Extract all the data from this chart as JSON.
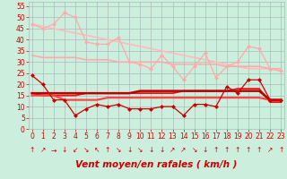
{
  "bg_color": "#cceedd",
  "grid_color": "#aabbbb",
  "xlabel": "Vent moyen/en rafales ( km/h )",
  "xlabel_color": "#cc0000",
  "yticks": [
    0,
    5,
    10,
    15,
    20,
    25,
    30,
    35,
    40,
    45,
    50,
    55
  ],
  "xticks": [
    0,
    1,
    2,
    3,
    4,
    5,
    6,
    7,
    8,
    9,
    10,
    11,
    12,
    13,
    14,
    15,
    16,
    17,
    18,
    19,
    20,
    21,
    22,
    23
  ],
  "xlim": [
    -0.3,
    23.3
  ],
  "ylim": [
    0,
    57
  ],
  "series": [
    {
      "x": [
        0,
        1,
        2,
        3,
        4,
        5,
        6,
        7,
        8,
        9,
        10,
        11,
        12,
        13,
        14,
        15,
        16,
        17,
        18,
        19,
        20,
        21,
        22,
        23
      ],
      "y": [
        47,
        45,
        47,
        52,
        50,
        39,
        38,
        38,
        41,
        30,
        29,
        27,
        33,
        28,
        22,
        28,
        34,
        23,
        28,
        30,
        37,
        36,
        27,
        26
      ],
      "color": "#ffaaaa",
      "lw": 0.9,
      "marker": "D",
      "ms": 2.0,
      "zorder": 4
    },
    {
      "x": [
        0,
        1,
        2,
        3,
        4,
        5,
        6,
        7,
        8,
        9,
        10,
        11,
        12,
        13,
        14,
        15,
        16,
        17,
        18,
        19,
        20,
        21,
        22,
        23
      ],
      "y": [
        47,
        46,
        45,
        44,
        43,
        42,
        41,
        40,
        39,
        38,
        37,
        36,
        35,
        34,
        33,
        32,
        31,
        30,
        29,
        28,
        27,
        27,
        27,
        26
      ],
      "color": "#ffbbbb",
      "lw": 1.2,
      "marker": null,
      "ms": 0,
      "zorder": 2
    },
    {
      "x": [
        0,
        1,
        2,
        3,
        4,
        5,
        6,
        7,
        8,
        9,
        10,
        11,
        12,
        13,
        14,
        15,
        16,
        17,
        18,
        19,
        20,
        21,
        22,
        23
      ],
      "y": [
        33,
        32,
        32,
        32,
        32,
        31,
        31,
        31,
        30,
        30,
        30,
        30,
        30,
        29,
        29,
        29,
        29,
        29,
        28,
        28,
        28,
        28,
        27,
        27
      ],
      "color": "#ffaaaa",
      "lw": 1.2,
      "marker": null,
      "ms": 0,
      "zorder": 2
    },
    {
      "x": [
        0,
        1,
        2,
        3,
        4,
        5,
        6,
        7,
        8,
        9,
        10,
        11,
        12,
        13,
        14,
        15,
        16,
        17,
        18,
        19,
        20,
        21,
        22,
        23
      ],
      "y": [
        24,
        20,
        13,
        13,
        6,
        9,
        11,
        10,
        11,
        9,
        9,
        9,
        10,
        10,
        6,
        11,
        11,
        10,
        19,
        16,
        22,
        22,
        13,
        13
      ],
      "color": "#cc0000",
      "lw": 0.9,
      "marker": "D",
      "ms": 2.0,
      "zorder": 5
    },
    {
      "x": [
        0,
        1,
        2,
        3,
        4,
        5,
        6,
        7,
        8,
        9,
        10,
        11,
        12,
        13,
        14,
        15,
        16,
        17,
        18,
        19,
        20,
        21,
        22,
        23
      ],
      "y": [
        16,
        15,
        15,
        15,
        15,
        16,
        16,
        16,
        16,
        16,
        16,
        16,
        16,
        16,
        17,
        17,
        17,
        17,
        17,
        18,
        18,
        18,
        12,
        12
      ],
      "color": "#ee1111",
      "lw": 1.3,
      "marker": null,
      "ms": 0,
      "zorder": 3
    },
    {
      "x": [
        0,
        1,
        2,
        3,
        4,
        5,
        6,
        7,
        8,
        9,
        10,
        11,
        12,
        13,
        14,
        15,
        16,
        17,
        18,
        19,
        20,
        21,
        22,
        23
      ],
      "y": [
        15,
        15,
        15,
        13,
        13,
        13,
        13,
        14,
        14,
        14,
        14,
        14,
        14,
        14,
        14,
        14,
        14,
        14,
        14,
        14,
        14,
        14,
        13,
        13
      ],
      "color": "#ff4444",
      "lw": 1.6,
      "marker": null,
      "ms": 0,
      "zorder": 3
    },
    {
      "x": [
        0,
        1,
        2,
        3,
        4,
        5,
        6,
        7,
        8,
        9,
        10,
        11,
        12,
        13,
        14,
        15,
        16,
        17,
        18,
        19,
        20,
        21,
        22,
        23
      ],
      "y": [
        16,
        16,
        16,
        16,
        16,
        16,
        16,
        16,
        16,
        16,
        17,
        17,
        17,
        17,
        17,
        17,
        17,
        17,
        17,
        17,
        17,
        17,
        13,
        13
      ],
      "color": "#bb0000",
      "lw": 1.8,
      "marker": null,
      "ms": 0,
      "zorder": 3
    }
  ],
  "arrow_symbols": [
    "↑",
    "↗",
    "→",
    "↓",
    "↙",
    "↘",
    "↖",
    "↑",
    "↘",
    "↓",
    "↘",
    "↓",
    "↓",
    "↗",
    "↗",
    "↘",
    "↓",
    "↑",
    "↑",
    "↑",
    "↑",
    "↑",
    "↗",
    "↑"
  ],
  "xlabel_fontsize": 7.5,
  "tick_fontsize": 5.5,
  "arrow_fontsize": 5.5
}
